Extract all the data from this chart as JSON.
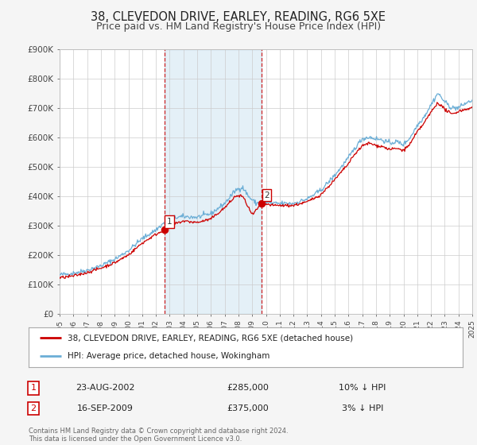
{
  "title": "38, CLEVEDON DRIVE, EARLEY, READING, RG6 5XE",
  "subtitle": "Price paid vs. HM Land Registry's House Price Index (HPI)",
  "ylim": [
    0,
    900000
  ],
  "yticks": [
    0,
    100000,
    200000,
    300000,
    400000,
    500000,
    600000,
    700000,
    800000,
    900000
  ],
  "ytick_labels": [
    "£0",
    "£100K",
    "£200K",
    "£300K",
    "£400K",
    "£500K",
    "£600K",
    "£700K",
    "£800K",
    "£900K"
  ],
  "background_color": "#f5f5f5",
  "plot_bg_color": "#ffffff",
  "grid_color": "#cccccc",
  "sale1": {
    "date_num": 2002.644,
    "price": 285000,
    "label": "1",
    "date_str": "23-AUG-2002",
    "price_str": "£285,000",
    "hpi_str": "10% ↓ HPI"
  },
  "sale2": {
    "date_num": 2009.71,
    "price": 375000,
    "label": "2",
    "date_str": "16-SEP-2009",
    "price_str": "£375,000",
    "hpi_str": "3% ↓ HPI"
  },
  "shade_start": 2002.644,
  "shade_end": 2009.71,
  "red_line_color": "#cc0000",
  "blue_line_color": "#6baed6",
  "sale_marker_color": "#cc0000",
  "legend_label_red": "38, CLEVEDON DRIVE, EARLEY, READING, RG6 5XE (detached house)",
  "legend_label_blue": "HPI: Average price, detached house, Wokingham",
  "footer_text": "Contains HM Land Registry data © Crown copyright and database right 2024.\nThis data is licensed under the Open Government Licence v3.0.",
  "title_fontsize": 10.5,
  "subtitle_fontsize": 9.0,
  "xmin": 1995,
  "xmax": 2025
}
